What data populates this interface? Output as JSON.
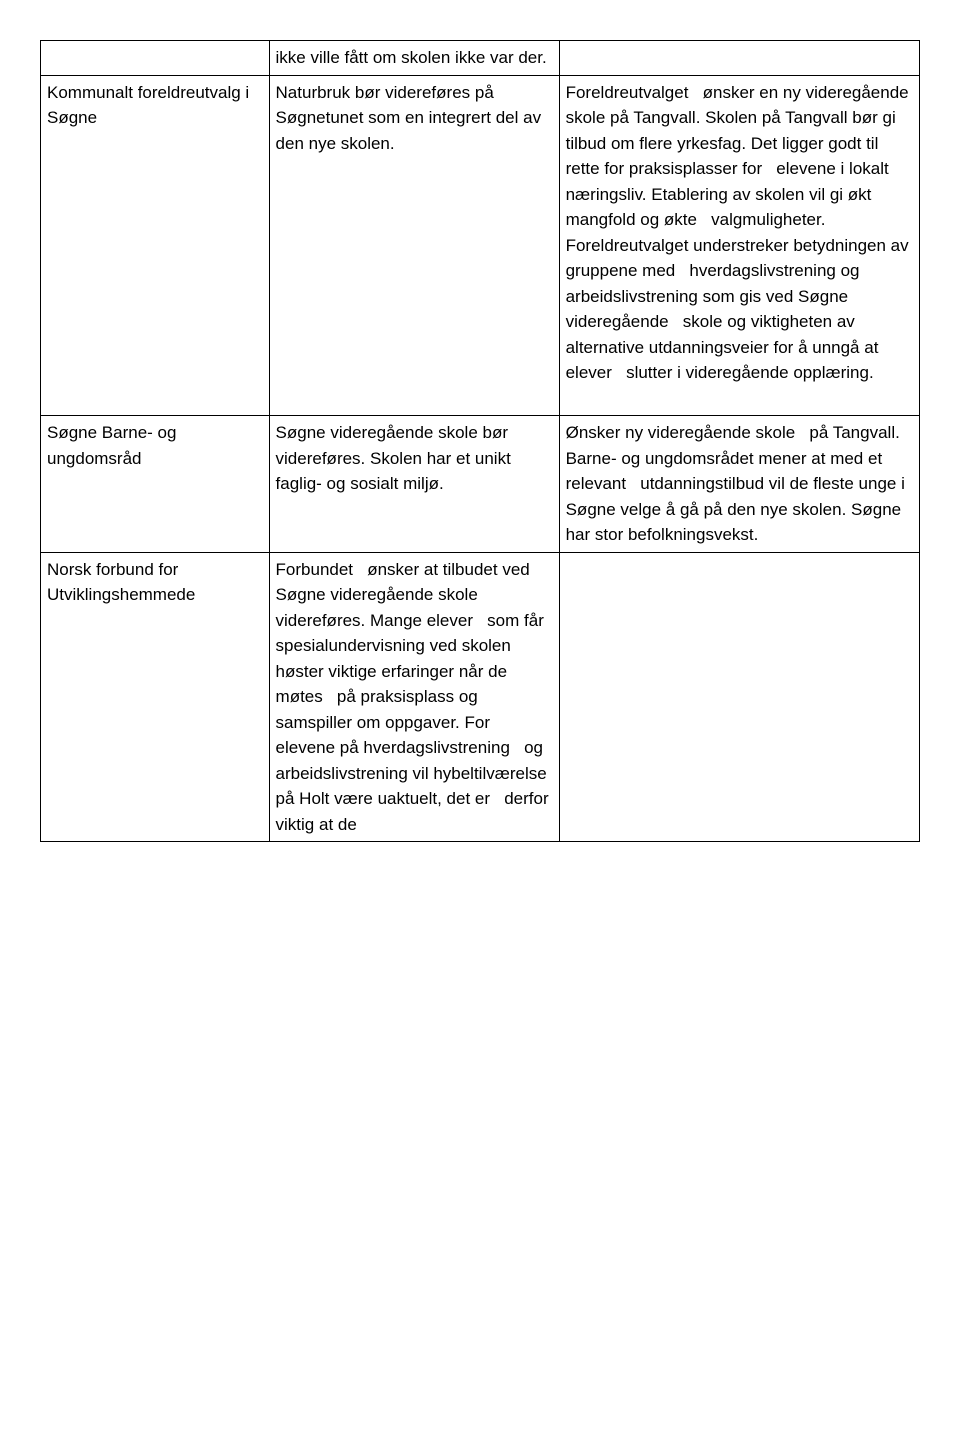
{
  "table": {
    "rows": [
      {
        "col1": "",
        "col2": "ikke ville fått om skolen ikke var der.",
        "col3": ""
      },
      {
        "col1": "Kommunalt foreldreutvalg i   Søgne",
        "col2": "Naturbruk bør videreføres på   Søgnetunet som en integrert del av den nye skolen.",
        "col3": "Foreldreutvalget   ønsker en ny videregående skole på Tangvall. Skolen på Tangvall bør gi   tilbud om flere yrkesfag. Det ligger godt til rette for praksisplasser for   elevene i lokalt næringsliv. Etablering av skolen vil gi økt mangfold og økte   valgmuligheter. Foreldreutvalget understreker betydningen av gruppene med   hverdagslivstrening og arbeidslivstrening som gis ved Søgne videregående   skole og viktigheten av alternative utdanningsveier for å unngå at elever   slutter i videregående opplæring.\n\n"
      },
      {
        "col1": "Søgne Barne- og ungdomsråd",
        "col2": "Søgne videregående skole bør   videreføres. Skolen har et unikt faglig- og sosialt miljø.",
        "col3": "Ønsker ny videregående skole   på Tangvall. Barne- og ungdomsrådet mener at med et relevant   utdanningstilbud vil de fleste unge i Søgne velge å gå på den nye skolen. Søgne   har stor befolkningsvekst."
      },
      {
        "col1": "Norsk forbund for   Utviklingshemmede",
        "col2": "Forbundet   ønsker at tilbudet ved Søgne videregående skole videreføres. Mange elever   som får spesialundervisning ved skolen høster viktige erfaringer når de møtes   på praksisplass og samspiller om oppgaver. For elevene på hverdagslivstrening   og arbeidslivstrening vil hybeltilværelse på Holt være uaktuelt, det er   derfor viktig at de",
        "col3": ""
      }
    ]
  }
}
